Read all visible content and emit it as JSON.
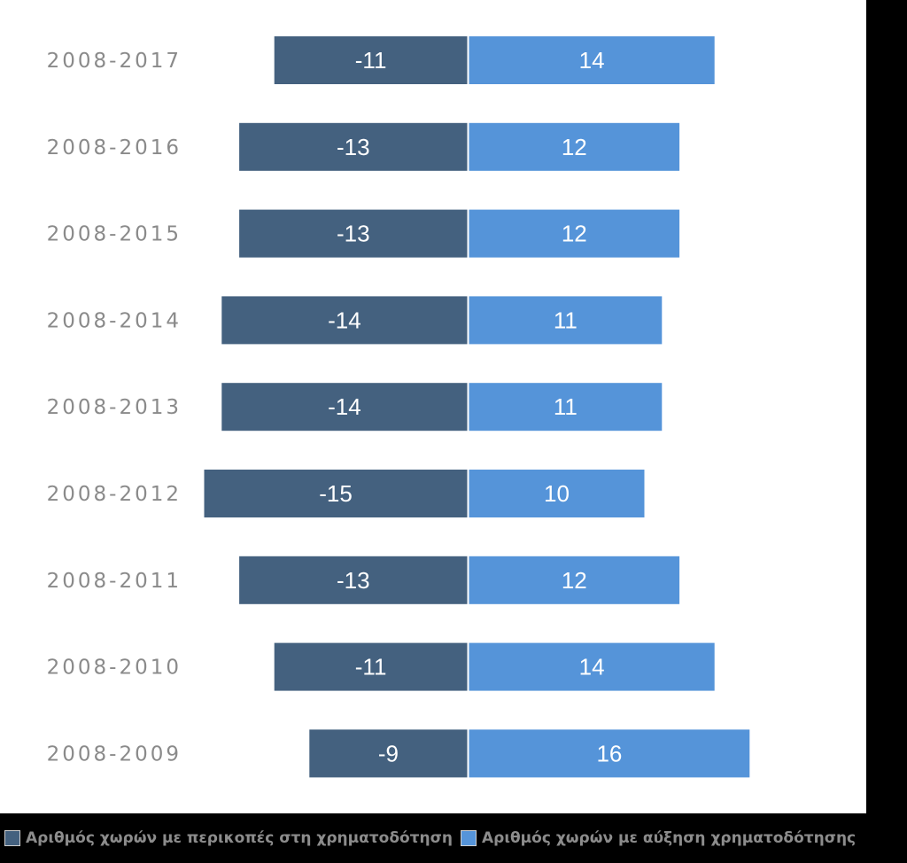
{
  "chart_data": {
    "type": "bar",
    "orientation": "horizontal",
    "stacked": "diverging",
    "categories": [
      "2008-2017",
      "2008-2016",
      "2008-2015",
      "2008-2014",
      "2008-2013",
      "2008-2012",
      "2008-2011",
      "2008-2010",
      "2008-2009"
    ],
    "series": [
      {
        "name": "Αριθμός χωρών με περικοπές στη χρηματοδότηση",
        "values": [
          -11,
          -13,
          -13,
          -14,
          -14,
          -15,
          -13,
          -11,
          -9
        ],
        "color": "#44617f"
      },
      {
        "name": "Αριθμός χωρών με αύξηση χρηματοδότησης",
        "values": [
          14,
          12,
          12,
          11,
          11,
          10,
          12,
          14,
          16
        ],
        "color": "#5594d9"
      }
    ],
    "title": "",
    "xlabel": "",
    "ylabel": "",
    "grid": false,
    "legend": "bottom-left"
  }
}
